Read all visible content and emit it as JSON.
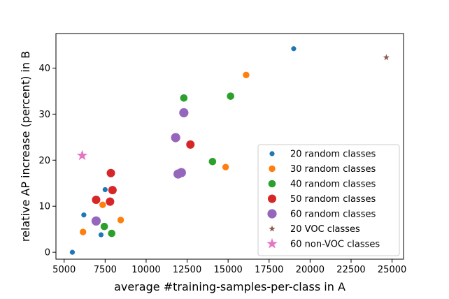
{
  "chart_data": {
    "type": "scatter",
    "title": "",
    "xlabel": "average #training-samples-per-class in A",
    "ylabel": "relative AP increase (percent) in B",
    "xlim": [
      4500,
      25700
    ],
    "ylim": [
      -1.5,
      47.5
    ],
    "xticks": [
      5000,
      7500,
      10000,
      12500,
      15000,
      17500,
      20000,
      22500,
      25000
    ],
    "yticks": [
      0,
      10,
      20,
      30,
      40
    ],
    "grid": false,
    "legend_position": "bottom-right",
    "series": [
      {
        "name": "20 random classes",
        "color": "#1f77b4",
        "marker": "circle",
        "size": "small",
        "points": [
          [
            5500,
            0
          ],
          [
            6200,
            8.1
          ],
          [
            7250,
            3.8
          ],
          [
            7500,
            13.6
          ],
          [
            19000,
            44.2
          ]
        ]
      },
      {
        "name": "30 random classes",
        "color": "#ff7f0e",
        "marker": "circle",
        "size": "medium",
        "points": [
          [
            6150,
            4.4
          ],
          [
            7350,
            10.3
          ],
          [
            8450,
            7.0
          ],
          [
            14850,
            18.5
          ],
          [
            16100,
            38.5
          ]
        ]
      },
      {
        "name": "40 random classes",
        "color": "#2ca02c",
        "marker": "circle",
        "size": "medium-large",
        "points": [
          [
            7450,
            5.6
          ],
          [
            7900,
            4.1
          ],
          [
            12300,
            33.5
          ],
          [
            14050,
            19.7
          ],
          [
            15150,
            33.9
          ]
        ]
      },
      {
        "name": "50 random classes",
        "color": "#d62728",
        "marker": "circle",
        "size": "large",
        "points": [
          [
            6950,
            11.4
          ],
          [
            7800,
            11.0
          ],
          [
            7850,
            17.2
          ],
          [
            7950,
            13.5
          ],
          [
            12700,
            23.4
          ]
        ]
      },
      {
        "name": "60 random classes",
        "color": "#9467bd",
        "marker": "circle",
        "size": "x-large",
        "points": [
          [
            6950,
            6.8
          ],
          [
            11800,
            24.9
          ],
          [
            11950,
            17.0
          ],
          [
            12150,
            17.3
          ],
          [
            12300,
            30.3
          ]
        ]
      },
      {
        "name": "20 VOC classes",
        "color": "#8c564b",
        "marker": "star",
        "size": "small",
        "points": [
          [
            24650,
            42.3
          ]
        ]
      },
      {
        "name": "60 non-VOC classes",
        "color": "#e377c2",
        "marker": "star",
        "size": "large",
        "points": [
          [
            6100,
            21.0
          ]
        ]
      }
    ]
  }
}
